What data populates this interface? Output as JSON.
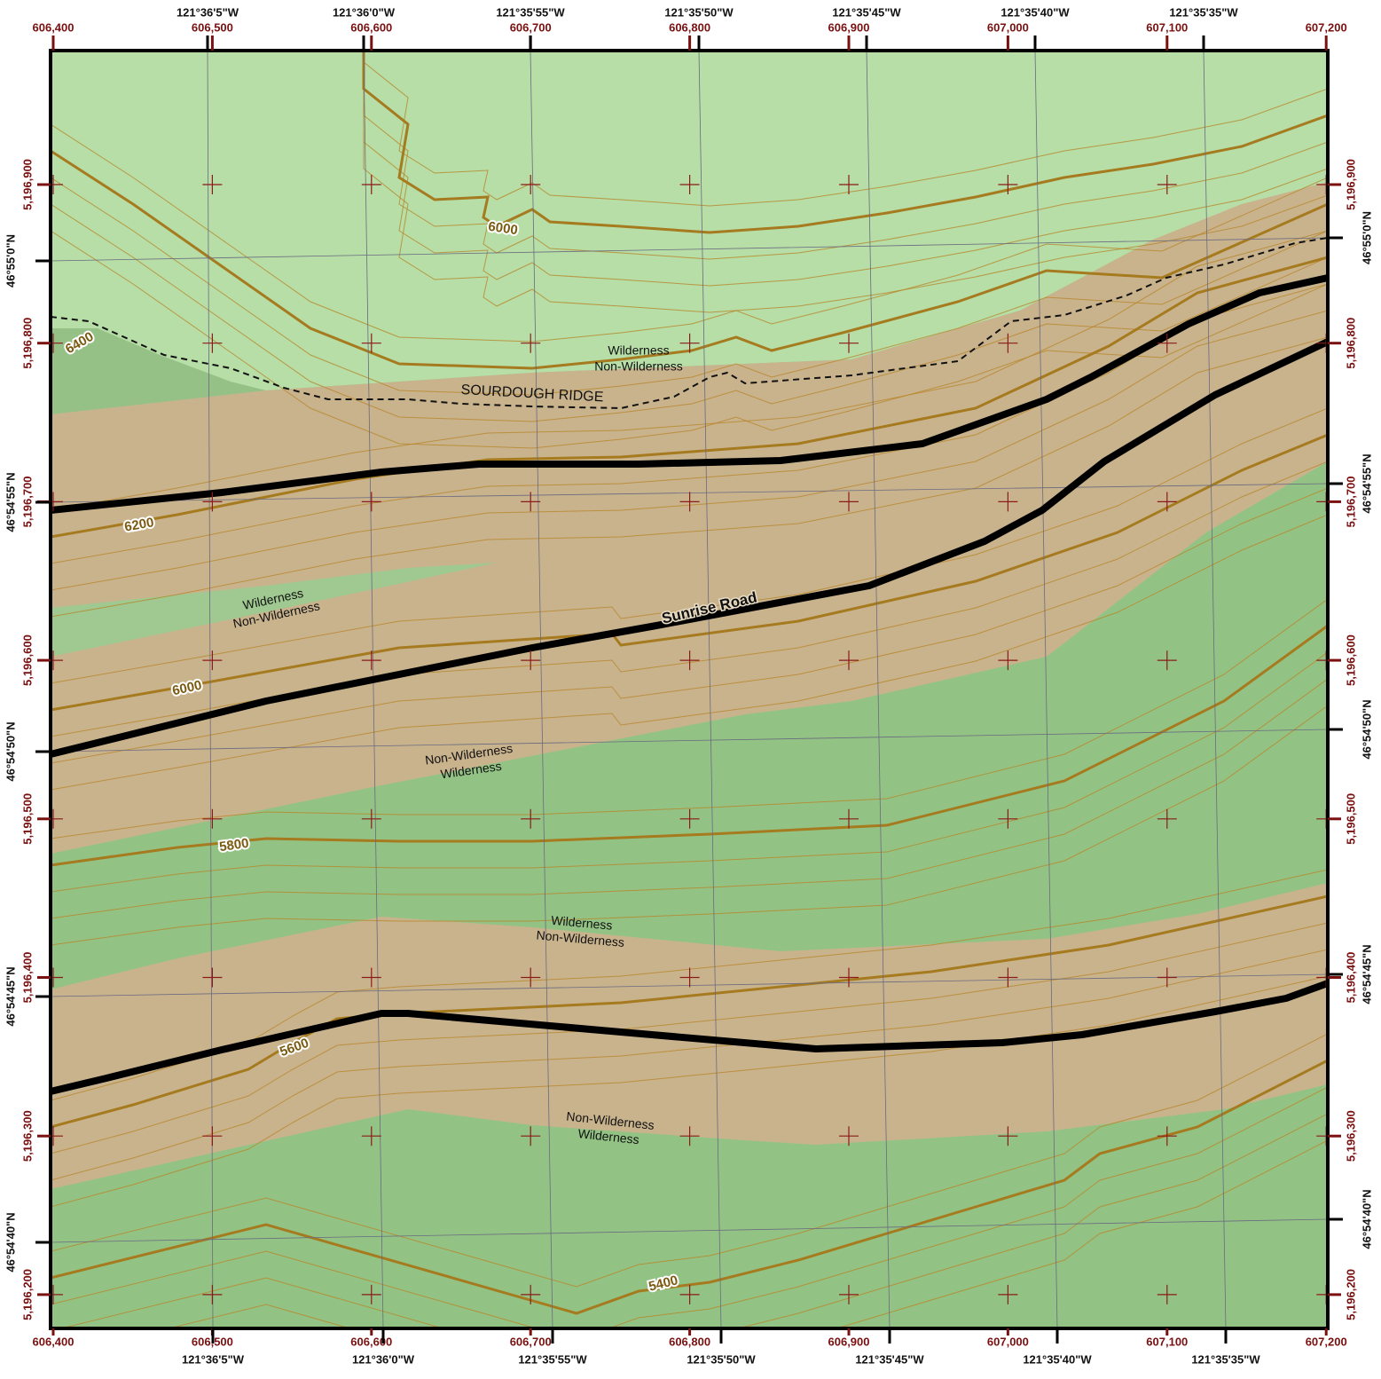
{
  "map": {
    "easting_ticks": [
      {
        "value": 606400,
        "label": "606,400"
      },
      {
        "value": 606500,
        "label": "606,500"
      },
      {
        "value": 606600,
        "label": "606,600"
      },
      {
        "value": 606700,
        "label": "606,700"
      },
      {
        "value": 606800,
        "label": "606,800"
      },
      {
        "value": 606900,
        "label": "606,900"
      },
      {
        "value": 607000,
        "label": "607,000"
      },
      {
        "value": 607100,
        "label": "607,100"
      },
      {
        "value": 607200,
        "label": "607,200"
      }
    ],
    "northing_ticks": [
      {
        "value": 5196900,
        "label": "5,196,900"
      },
      {
        "value": 5196800,
        "label": "5,196,800"
      },
      {
        "value": 5196700,
        "label": "5,196,700"
      },
      {
        "value": 5196600,
        "label": "5,196,600"
      },
      {
        "value": 5196500,
        "label": "5,196,500"
      },
      {
        "value": 5196400,
        "label": "5,196,400"
      },
      {
        "value": 5196300,
        "label": "5,196,300"
      },
      {
        "value": 5196200,
        "label": "5,196,200"
      }
    ],
    "longitude_labels": [
      "121°36'5\"W",
      "121°36'0\"W",
      "121°35'55\"W",
      "121°35'50\"W",
      "121°35'45\"W",
      "121°35'40\"W",
      "121°35'35\"W"
    ],
    "latitude_labels": [
      "46°55'0\"N",
      "46°54'55\"N",
      "46°54'50\"N",
      "46°54'45\"N",
      "46°54'40\"N"
    ],
    "contour_labels": [
      6000,
      6400,
      6200,
      6000,
      5800,
      5600,
      5400
    ],
    "place_label": "SOURDOUGH RIDGE",
    "road_label": "Sunrise Road",
    "boundary_labels": [
      [
        "Wilderness",
        "Non-Wilderness"
      ],
      [
        "Wilderness",
        "Non-Wilderness"
      ],
      [
        "Non-Wilderness",
        "Wilderness"
      ],
      [
        "Wilderness",
        "Non-Wilderness"
      ],
      [
        "Non-Wilderness",
        "Wilderness"
      ]
    ]
  }
}
